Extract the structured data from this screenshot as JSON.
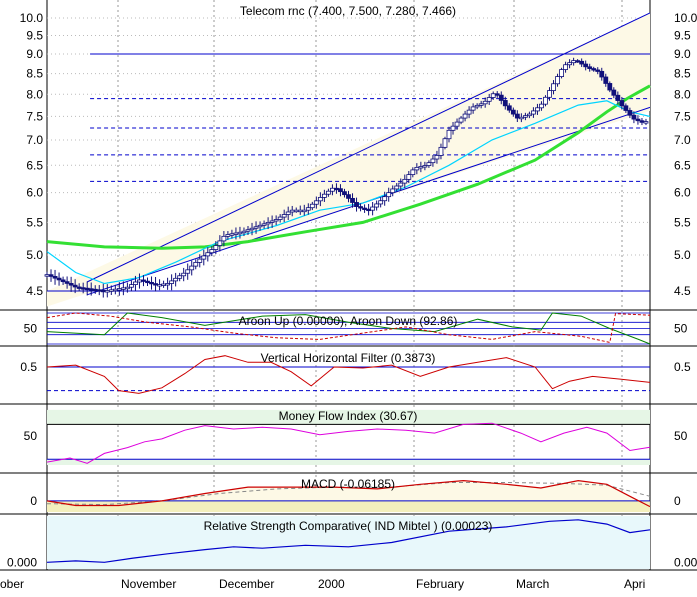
{
  "chart_data": {
    "type": "candlestick",
    "title": "Telecom rnc (7.400, 7.500, 7.280, 7.466)",
    "colors": {
      "candle": "#10107a",
      "price_ma_short": "#00d4ff",
      "price_ma_long": "#33e033",
      "channel": "#0000cc",
      "aroon_up": "#008000",
      "aroon_down": "#cc0000",
      "vhf": "#cc0000",
      "mfi": "#dd00dd",
      "macd": "#cc0000",
      "rsc": "#0000cc",
      "panel_band": "#fdf9e6",
      "mfi_band": "#e6f6e6",
      "rsc_band": "#e8f8fb"
    },
    "x_labels": [
      "ober",
      "November",
      "December",
      "2000",
      "February",
      "March",
      "Apri"
    ],
    "price": {
      "y_ticks": [
        "10.0",
        "9.5",
        "9.0",
        "8.5",
        "8.0",
        "7.5",
        "7.0",
        "6.5",
        "6.0",
        "5.5",
        "5.0",
        "4.5"
      ],
      "y_tick_values": [
        10.0,
        9.5,
        9.0,
        8.5,
        8.0,
        7.5,
        7.0,
        6.5,
        6.0,
        5.5,
        5.0,
        4.5
      ],
      "close_path": [
        [
          0,
          4.72
        ],
        [
          10,
          4.55
        ],
        [
          20,
          4.5
        ],
        [
          28,
          4.55
        ],
        [
          32,
          4.65
        ],
        [
          38,
          4.58
        ],
        [
          42,
          4.6
        ],
        [
          48,
          4.75
        ],
        [
          52,
          4.9
        ],
        [
          58,
          5.1
        ],
        [
          62,
          5.3
        ],
        [
          68,
          5.35
        ],
        [
          74,
          5.45
        ],
        [
          80,
          5.55
        ],
        [
          85,
          5.7
        ],
        [
          90,
          5.7
        ],
        [
          96,
          5.95
        ],
        [
          100,
          6.1
        ],
        [
          104,
          5.95
        ],
        [
          108,
          5.75
        ],
        [
          112,
          5.7
        ],
        [
          116,
          5.85
        ],
        [
          120,
          6.05
        ],
        [
          124,
          6.2
        ],
        [
          128,
          6.45
        ],
        [
          132,
          6.5
        ],
        [
          136,
          6.7
        ],
        [
          140,
          7.2
        ],
        [
          144,
          7.45
        ],
        [
          148,
          7.7
        ],
        [
          152,
          7.8
        ],
        [
          156,
          8.05
        ],
        [
          160,
          7.7
        ],
        [
          164,
          7.45
        ],
        [
          168,
          7.55
        ],
        [
          172,
          7.75
        ],
        [
          176,
          8.2
        ],
        [
          180,
          8.7
        ],
        [
          184,
          8.85
        ],
        [
          188,
          8.65
        ],
        [
          192,
          8.55
        ],
        [
          196,
          8.1
        ],
        [
          200,
          7.75
        ],
        [
          204,
          7.45
        ],
        [
          208,
          7.35
        ],
        [
          210,
          7.47
        ]
      ],
      "ma_short_path": [
        [
          0,
          5.05
        ],
        [
          10,
          4.75
        ],
        [
          20,
          4.6
        ],
        [
          32,
          4.68
        ],
        [
          45,
          4.9
        ],
        [
          60,
          5.2
        ],
        [
          80,
          5.45
        ],
        [
          95,
          5.7
        ],
        [
          110,
          5.82
        ],
        [
          125,
          6.1
        ],
        [
          140,
          6.5
        ],
        [
          155,
          7.0
        ],
        [
          170,
          7.35
        ],
        [
          185,
          7.75
        ],
        [
          195,
          7.85
        ],
        [
          203,
          7.6
        ],
        [
          210,
          7.5
        ]
      ],
      "ma_long_path": [
        [
          0,
          5.2
        ],
        [
          20,
          5.12
        ],
        [
          40,
          5.1
        ],
        [
          55,
          5.12
        ],
        [
          70,
          5.2
        ],
        [
          90,
          5.35
        ],
        [
          110,
          5.5
        ],
        [
          130,
          5.8
        ],
        [
          150,
          6.15
        ],
        [
          170,
          6.6
        ],
        [
          185,
          7.15
        ],
        [
          195,
          7.6
        ],
        [
          202,
          7.9
        ],
        [
          210,
          8.2
        ]
      ],
      "channel_upper": [
        [
          0,
          4.5
        ],
        [
          210,
          10.15
        ]
      ],
      "channel_lower": [
        [
          0,
          4.3
        ],
        [
          210,
          7.62
        ]
      ],
      "horizontal_levels": [
        {
          "value": 9.0,
          "style": "solid"
        },
        {
          "value": 7.9,
          "style": "dashed"
        },
        {
          "value": 7.25,
          "style": "dashed"
        },
        {
          "value": 6.7,
          "style": "dashed"
        },
        {
          "value": 6.2,
          "style": "dashed"
        },
        {
          "value": 4.5,
          "style": "solid"
        }
      ]
    },
    "aroon": {
      "title": "Aroon Up (0.00000), Aroon Down (92.86)",
      "y_ticks": [
        "50"
      ],
      "up_path": [
        [
          0,
          40
        ],
        [
          20,
          30
        ],
        [
          28,
          100
        ],
        [
          40,
          85
        ],
        [
          55,
          60
        ],
        [
          65,
          75
        ],
        [
          75,
          90
        ],
        [
          90,
          95
        ],
        [
          105,
          70
        ],
        [
          120,
          50
        ],
        [
          135,
          40
        ],
        [
          150,
          80
        ],
        [
          162,
          55
        ],
        [
          172,
          45
        ],
        [
          176,
          100
        ],
        [
          186,
          90
        ],
        [
          196,
          50
        ],
        [
          206,
          15
        ],
        [
          210,
          0
        ]
      ],
      "down_path": [
        [
          0,
          85
        ],
        [
          10,
          100
        ],
        [
          22,
          90
        ],
        [
          35,
          70
        ],
        [
          50,
          55
        ],
        [
          65,
          35
        ],
        [
          80,
          20
        ],
        [
          95,
          15
        ],
        [
          110,
          35
        ],
        [
          125,
          55
        ],
        [
          140,
          30
        ],
        [
          155,
          15
        ],
        [
          170,
          40
        ],
        [
          186,
          25
        ],
        [
          196,
          5
        ],
        [
          198,
          98
        ],
        [
          210,
          92.86
        ]
      ]
    },
    "vhf": {
      "title": "Vertical Horizontal Filter (0.3873)",
      "y_ticks": [
        "0.5"
      ],
      "path": [
        [
          0,
          0.55
        ],
        [
          10,
          0.57
        ],
        [
          20,
          0.45
        ],
        [
          25,
          0.3
        ],
        [
          32,
          0.27
        ],
        [
          40,
          0.33
        ],
        [
          48,
          0.48
        ],
        [
          55,
          0.63
        ],
        [
          62,
          0.67
        ],
        [
          70,
          0.6
        ],
        [
          78,
          0.6
        ],
        [
          85,
          0.5
        ],
        [
          92,
          0.35
        ],
        [
          100,
          0.55
        ],
        [
          110,
          0.54
        ],
        [
          120,
          0.57
        ],
        [
          130,
          0.45
        ],
        [
          140,
          0.55
        ],
        [
          150,
          0.6
        ],
        [
          160,
          0.65
        ],
        [
          170,
          0.55
        ],
        [
          176,
          0.32
        ],
        [
          182,
          0.4
        ],
        [
          190,
          0.45
        ],
        [
          200,
          0.42
        ],
        [
          210,
          0.3873
        ]
      ],
      "guides": [
        0.55,
        0.3
      ]
    },
    "mfi": {
      "title": "Money Flow Index (30.67)",
      "y_ticks": [
        "50"
      ],
      "path": [
        [
          0,
          5
        ],
        [
          8,
          12
        ],
        [
          14,
          3
        ],
        [
          20,
          20
        ],
        [
          28,
          30
        ],
        [
          34,
          40
        ],
        [
          40,
          45
        ],
        [
          48,
          60
        ],
        [
          55,
          68
        ],
        [
          65,
          62
        ],
        [
          75,
          65
        ],
        [
          85,
          62
        ],
        [
          95,
          52
        ],
        [
          105,
          58
        ],
        [
          115,
          62
        ],
        [
          125,
          60
        ],
        [
          135,
          55
        ],
        [
          145,
          70
        ],
        [
          155,
          72
        ],
        [
          165,
          55
        ],
        [
          172,
          40
        ],
        [
          180,
          55
        ],
        [
          188,
          65
        ],
        [
          195,
          55
        ],
        [
          203,
          25
        ],
        [
          210,
          30.67
        ]
      ]
    },
    "macd": {
      "title": "MACD (-0.06185)",
      "y_ticks": [
        "0"
      ],
      "macd_path": [
        [
          0,
          0.0
        ],
        [
          10,
          -0.05
        ],
        [
          25,
          -0.05
        ],
        [
          40,
          0.0
        ],
        [
          55,
          0.08
        ],
        [
          70,
          0.15
        ],
        [
          85,
          0.15
        ],
        [
          100,
          0.15
        ],
        [
          115,
          0.13
        ],
        [
          130,
          0.18
        ],
        [
          145,
          0.22
        ],
        [
          160,
          0.18
        ],
        [
          172,
          0.14
        ],
        [
          185,
          0.22
        ],
        [
          195,
          0.18
        ],
        [
          203,
          0.05
        ],
        [
          210,
          -0.06185
        ]
      ],
      "signal_path": [
        [
          0,
          -0.03
        ],
        [
          20,
          -0.04
        ],
        [
          40,
          0.0
        ],
        [
          60,
          0.08
        ],
        [
          80,
          0.13
        ],
        [
          100,
          0.15
        ],
        [
          120,
          0.15
        ],
        [
          140,
          0.2
        ],
        [
          160,
          0.2
        ],
        [
          180,
          0.19
        ],
        [
          195,
          0.17
        ],
        [
          210,
          0.05
        ]
      ]
    },
    "rsc": {
      "title": "Relative Strength Comparative(  IND Mibtel  ) (0.00023)",
      "y_ticks": [
        "0.000"
      ],
      "path": [
        [
          0,
          0.0
        ],
        [
          10,
          1e-05
        ],
        [
          20,
          0.0
        ],
        [
          30,
          3e-05
        ],
        [
          42,
          6e-05
        ],
        [
          55,
          9e-05
        ],
        [
          65,
          0.00011
        ],
        [
          75,
          0.0001
        ],
        [
          90,
          0.00012
        ],
        [
          105,
          0.00011
        ],
        [
          120,
          0.00014
        ],
        [
          140,
          0.00022
        ],
        [
          160,
          0.00025
        ],
        [
          175,
          0.00029
        ],
        [
          185,
          0.0003
        ],
        [
          195,
          0.00027
        ],
        [
          203,
          0.00021
        ],
        [
          210,
          0.00023
        ]
      ]
    }
  }
}
